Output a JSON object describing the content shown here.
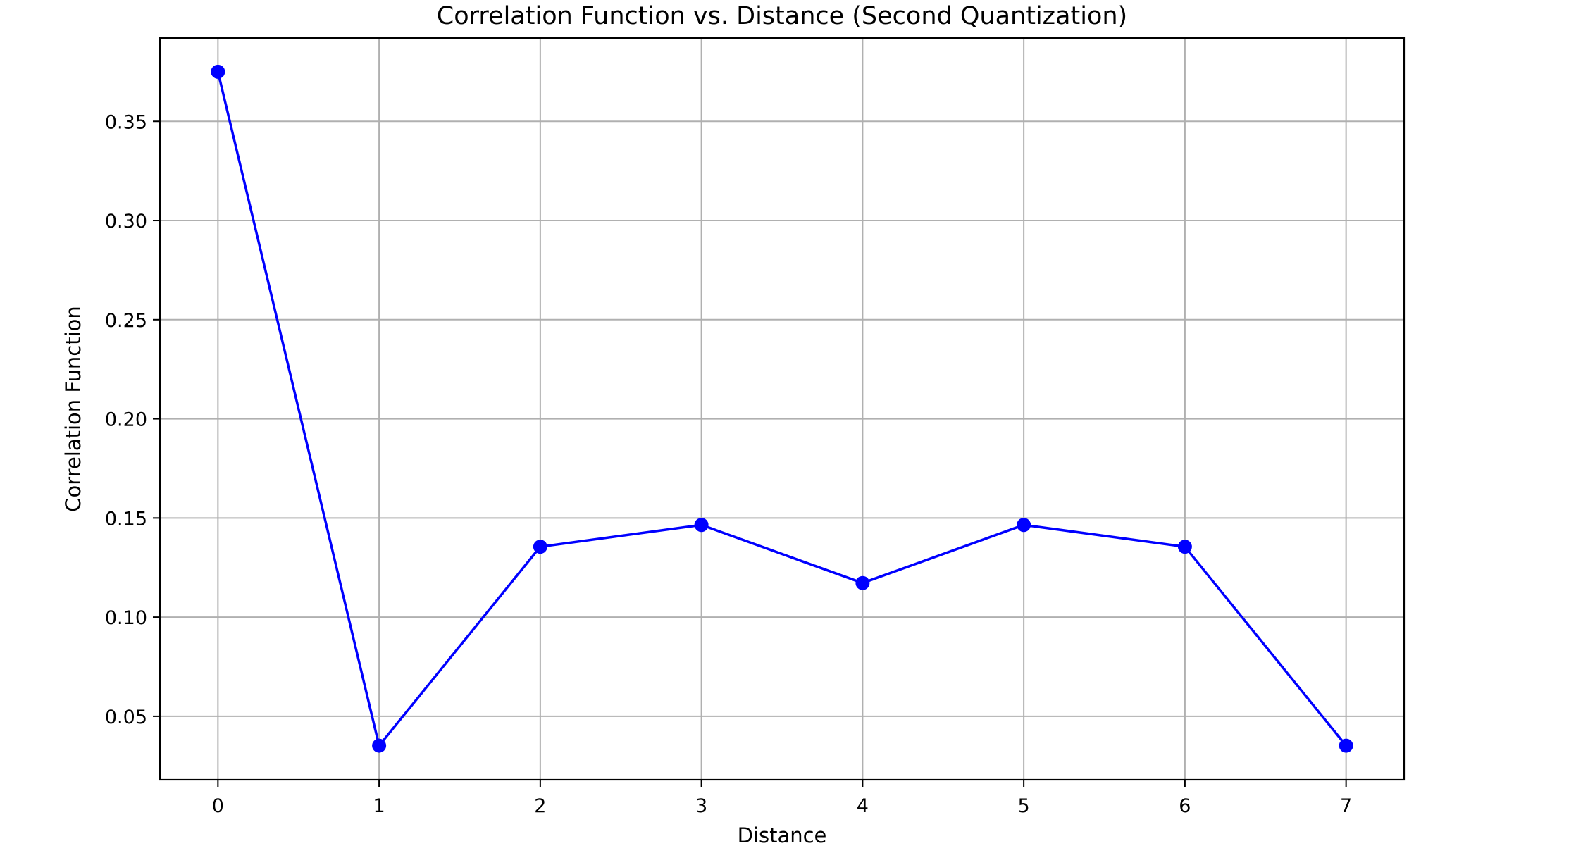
{
  "chart_data": {
    "type": "line",
    "title": "Correlation Function vs. Distance (Second Quantization)",
    "xlabel": "Distance",
    "ylabel": "Correlation Function",
    "x": [
      0,
      1,
      2,
      3,
      4,
      5,
      6,
      7
    ],
    "series": [
      {
        "values": [
          0.375,
          0.0352,
          0.1355,
          0.1465,
          0.1172,
          0.1465,
          0.1355,
          0.0352
        ],
        "color": "#0000ff",
        "marker": "circle"
      }
    ],
    "xlim": [
      -0.36,
      7.36
    ],
    "ylim": [
      0.018,
      0.392
    ],
    "xticks": [
      0,
      1,
      2,
      3,
      4,
      5,
      6,
      7
    ],
    "xtick_labels": [
      "0",
      "1",
      "2",
      "3",
      "4",
      "5",
      "6",
      "7"
    ],
    "yticks": [
      0.05,
      0.1,
      0.15,
      0.2,
      0.25,
      0.3,
      0.35
    ],
    "ytick_labels": [
      "0.05",
      "0.10",
      "0.15",
      "0.20",
      "0.25",
      "0.30",
      "0.35"
    ],
    "grid": true,
    "legend": "none"
  }
}
